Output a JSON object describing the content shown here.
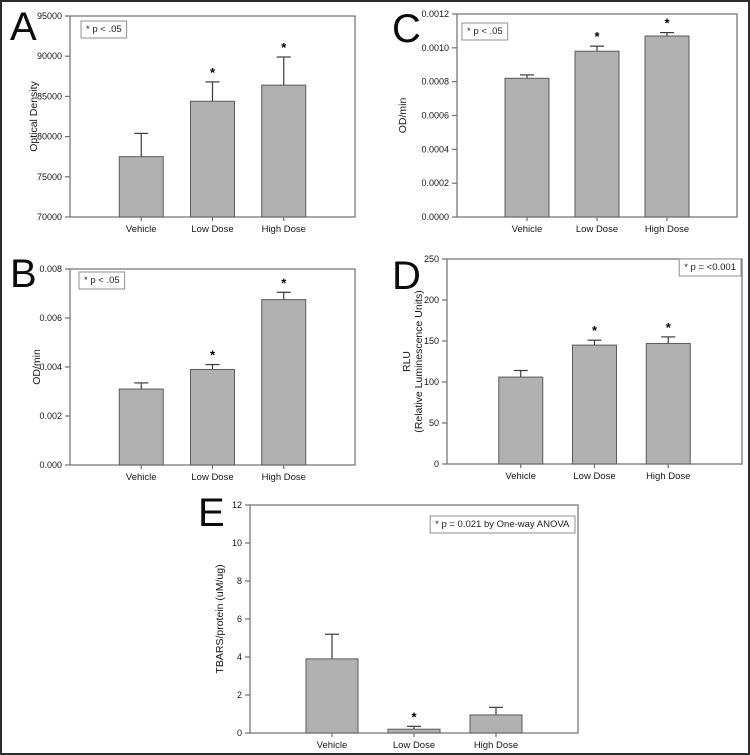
{
  "figure": {
    "background": "#ffffff",
    "border_color": "#2d2d2d",
    "bar_fill": "#b1b1b1",
    "bar_stroke": "#5a5a5a",
    "frame_stroke": "#6f6f6f",
    "error_bar_color": "#3a3a3a",
    "annotation_border": "#8f8f8f"
  },
  "chart_data": [
    {
      "letter": "A",
      "type": "bar",
      "ylabel_lines": [
        "Optical Density"
      ],
      "categories": [
        "Vehicle",
        "Low Dose",
        "High Dose"
      ],
      "values": [
        77500,
        84400,
        86400
      ],
      "errors": [
        2900,
        2400,
        3500
      ],
      "significant": [
        false,
        true,
        true
      ],
      "annotation": "* p < .05",
      "annotation_position": "top-left",
      "ylim": [
        70000,
        95000
      ],
      "yticks": [
        70000,
        75000,
        80000,
        85000,
        90000,
        95000
      ],
      "ytick_labels": [
        "70000",
        "75000",
        "80000",
        "85000",
        "90000",
        "95000"
      ]
    },
    {
      "letter": "B",
      "type": "bar",
      "ylabel_lines": [
        "OD/min"
      ],
      "categories": [
        "Vehicle",
        "Low Dose",
        "High Dose"
      ],
      "values": [
        0.0031,
        0.0039,
        0.00675
      ],
      "errors": [
        0.00025,
        0.0002,
        0.0003
      ],
      "significant": [
        false,
        true,
        true
      ],
      "annotation": "* p < .05",
      "annotation_position": "top-left",
      "ylim": [
        0,
        0.008
      ],
      "yticks": [
        0,
        0.002,
        0.004,
        0.006,
        0.008
      ],
      "ytick_labels": [
        "0.000",
        "0.002",
        "0.004",
        "0.006",
        "0.008"
      ]
    },
    {
      "letter": "C",
      "type": "bar",
      "ylabel_lines": [
        "OD/min"
      ],
      "categories": [
        "Vehicle",
        "Low Dose",
        "High Dose"
      ],
      "values": [
        0.00082,
        0.00098,
        0.00107
      ],
      "errors": [
        2e-05,
        3e-05,
        2e-05
      ],
      "significant": [
        false,
        true,
        true
      ],
      "annotation": "* p < .05",
      "annotation_position": "top-left",
      "ylim": [
        0,
        0.0012
      ],
      "yticks": [
        0,
        0.0002,
        0.0004,
        0.0006,
        0.0008,
        0.001,
        0.0012
      ],
      "ytick_labels": [
        "0.0000",
        "0.0002",
        "0.0004",
        "0.0006",
        "0.0008",
        "0.0010",
        "0.0012"
      ]
    },
    {
      "letter": "D",
      "type": "bar",
      "ylabel_lines": [
        "RLU",
        "(Relative Luminescence Units)"
      ],
      "categories": [
        "Vehicle",
        "Low Dose",
        "High Dose"
      ],
      "values": [
        106,
        145,
        147
      ],
      "errors": [
        8,
        6,
        8
      ],
      "significant": [
        false,
        true,
        true
      ],
      "annotation": "* p = <0.001",
      "annotation_position": "top-right",
      "ylim": [
        0,
        250
      ],
      "yticks": [
        0,
        50,
        100,
        150,
        200,
        250
      ],
      "ytick_labels": [
        "0",
        "50",
        "100",
        "150",
        "200",
        "250"
      ]
    },
    {
      "letter": "E",
      "type": "bar",
      "ylabel_lines": [
        "TBARS/protein (uM/ug)"
      ],
      "categories": [
        "Vehicle",
        "Low Dose",
        "High Dose"
      ],
      "values": [
        3.9,
        0.2,
        0.95
      ],
      "errors": [
        1.3,
        0.15,
        0.4
      ],
      "significant": [
        false,
        true,
        false
      ],
      "annotation": "* p = 0.021 by One-way ANOVA",
      "annotation_position": "top-right",
      "ylim": [
        0,
        12
      ],
      "yticks": [
        0,
        2,
        4,
        6,
        8,
        10,
        12
      ],
      "ytick_labels": [
        "0",
        "2",
        "4",
        "6",
        "8",
        "10",
        "12"
      ]
    }
  ]
}
